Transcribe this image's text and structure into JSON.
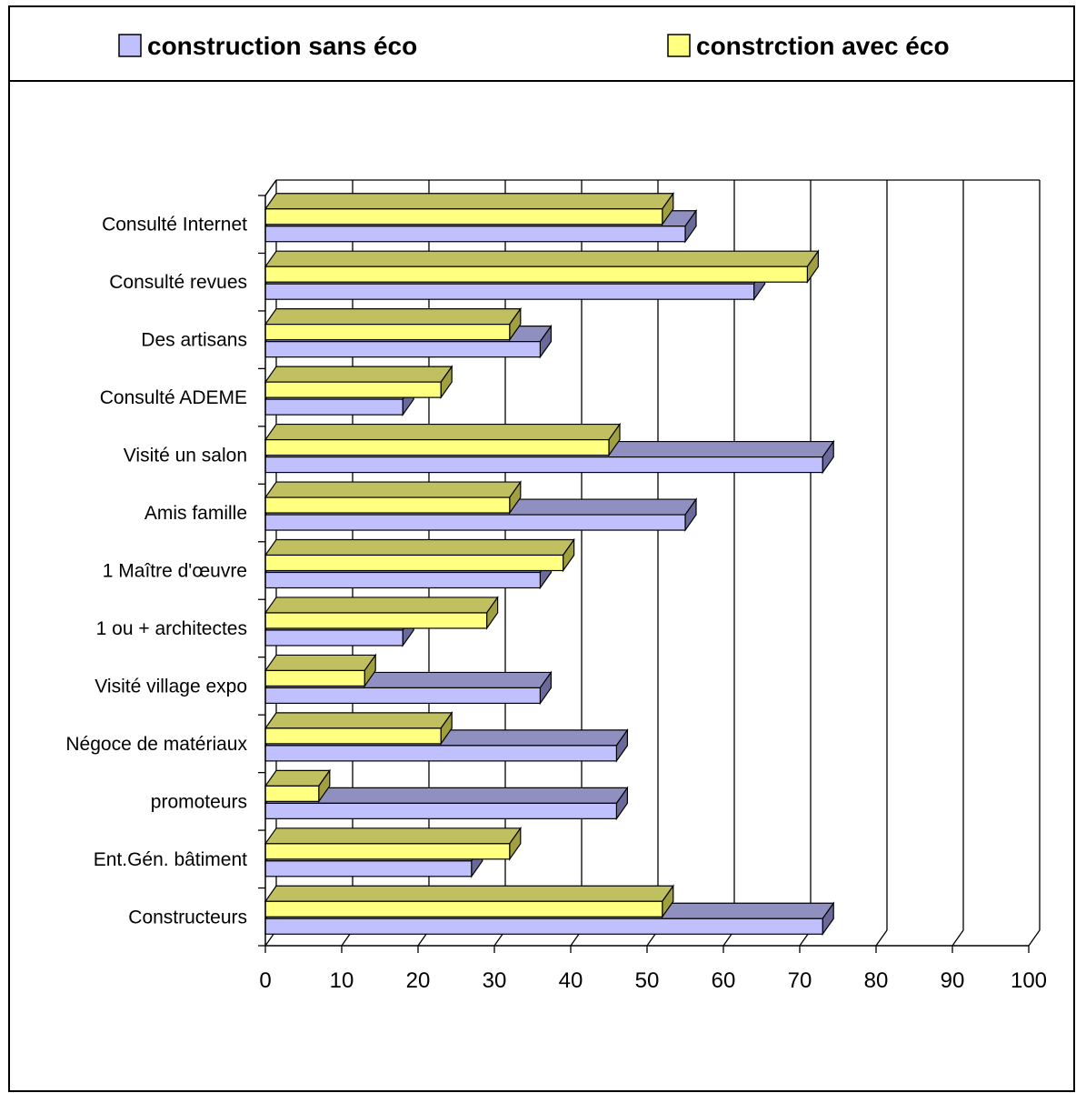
{
  "colors": {
    "series1_front": "#c0c0ff",
    "series1_top": "#9090c0",
    "series1_side": "#6a6a9a",
    "series2_front": "#ffff80",
    "series2_top": "#c0c060",
    "series2_side": "#a0a040",
    "grid": "#000000",
    "frame": "#000000"
  },
  "chart_data": {
    "type": "bar",
    "orientation": "horizontal",
    "style": "3d",
    "categories": [
      "Consulté Internet",
      "Consulté revues",
      "Des artisans",
      "Consulté ADEME",
      "Visité un salon",
      "Amis famille",
      "1 Maître d'œuvre",
      "1 ou + architectes",
      "Visité village expo",
      "Négoce de matériaux",
      "promoteurs",
      "Ent.Gén. bâtiment",
      "Constructeurs"
    ],
    "series": [
      {
        "name": "construction sans éco",
        "values": [
          55,
          64,
          36,
          18,
          73,
          55,
          36,
          18,
          36,
          46,
          46,
          27,
          73
        ]
      },
      {
        "name": "constrction avec éco",
        "values": [
          52,
          71,
          32,
          23,
          45,
          32,
          39,
          29,
          13,
          23,
          7,
          32,
          52
        ]
      }
    ],
    "xlim": [
      0,
      100
    ],
    "xticks": [
      "0",
      "10",
      "20",
      "30",
      "40",
      "50",
      "60",
      "70",
      "80",
      "90",
      "100"
    ],
    "grid": true,
    "legend_position": "top"
  }
}
